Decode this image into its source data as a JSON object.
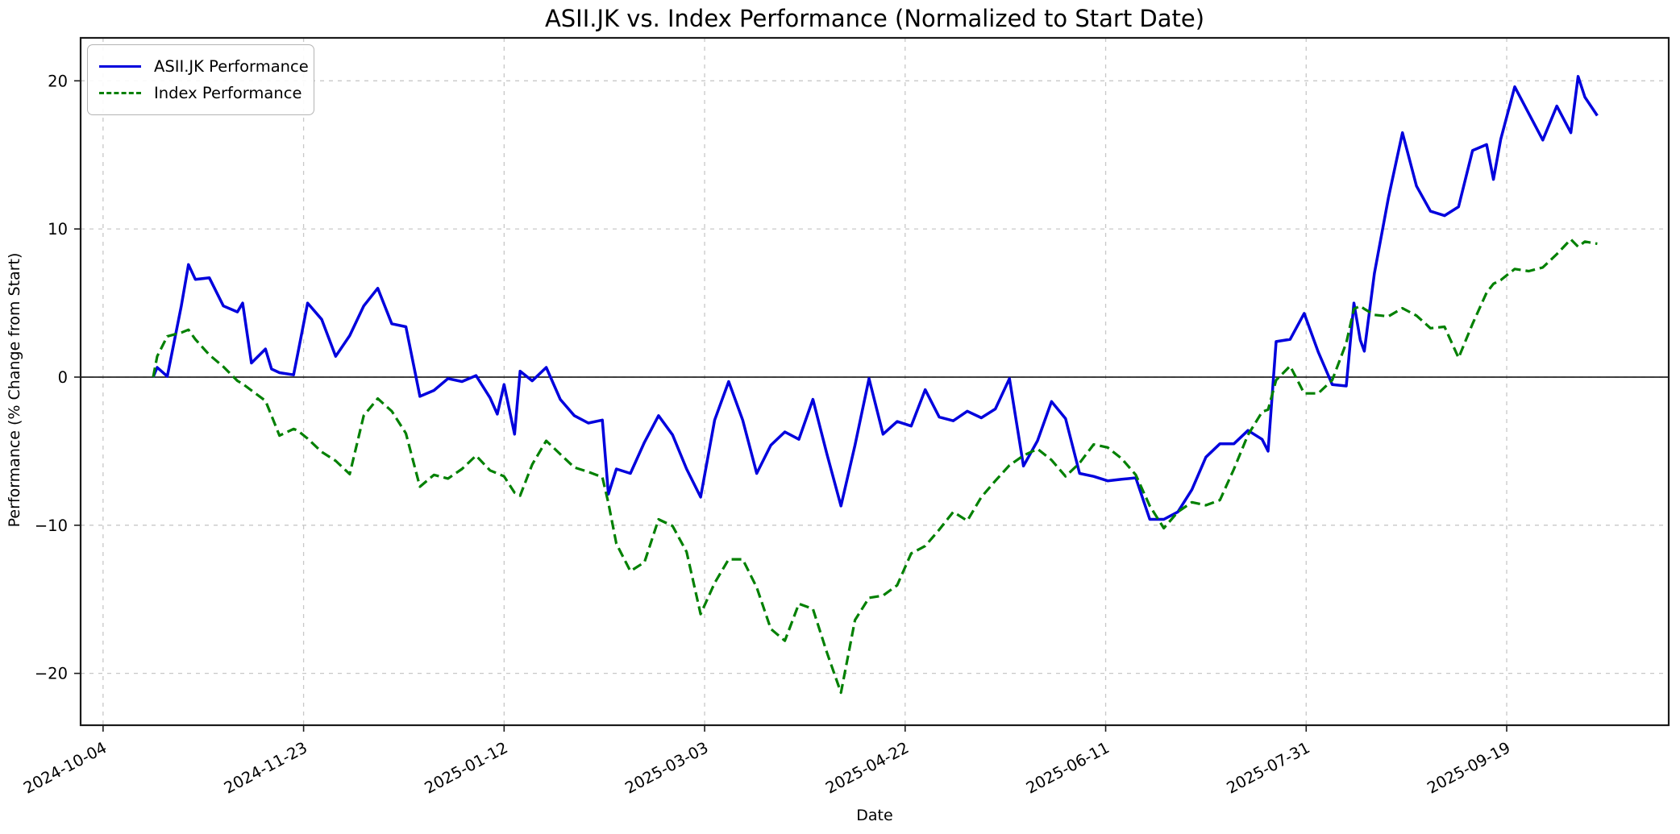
{
  "chart": {
    "title": "ASII.JK vs. Index Performance (Normalized to Start Date)",
    "xlabel": "Date",
    "ylabel": "Performance (% Change from Start)",
    "legend": {
      "position": "upper-left",
      "entries": [
        {
          "label": "ASII.JK Performance",
          "color": "#0000dd",
          "style": "solid"
        },
        {
          "label": "Index Performance",
          "color": "#008000",
          "style": "dashed"
        }
      ]
    }
  },
  "chart_data": {
    "type": "line",
    "title": "ASII.JK vs. Index Performance (Normalized to Start Date)",
    "xlabel": "Date",
    "ylabel": "Performance (% Change from Start)",
    "grid": true,
    "zero_line": true,
    "legend_position": "upper left",
    "x_unit": "days since 2024-10-04",
    "xlim": [
      -5.6,
      390.4
    ],
    "ylim": [
      -23.5,
      22.9
    ],
    "x_ticks": [
      {
        "day": 0,
        "label": "2024-10-04"
      },
      {
        "day": 50,
        "label": "2024-11-23"
      },
      {
        "day": 100,
        "label": "2025-01-12"
      },
      {
        "day": 150,
        "label": "2025-03-03"
      },
      {
        "day": 200,
        "label": "2025-04-22"
      },
      {
        "day": 250,
        "label": "2025-06-11"
      },
      {
        "day": 300,
        "label": "2025-07-31"
      },
      {
        "day": 350,
        "label": "2025-09-19"
      }
    ],
    "y_ticks": [
      {
        "value": -20,
        "label": "−20"
      },
      {
        "value": -10,
        "label": "−10"
      },
      {
        "value": 0,
        "label": "0"
      },
      {
        "value": 10,
        "label": "10"
      },
      {
        "value": 20,
        "label": "20"
      }
    ],
    "x": [
      12.5,
      13.5,
      16,
      19.5,
      21.3,
      23,
      26.5,
      30,
      33.5,
      34.8,
      37,
      40.5,
      42,
      44,
      47.5,
      48.5,
      51,
      54.5,
      58,
      61.5,
      65,
      68.5,
      72,
      75.5,
      79,
      82.5,
      86,
      89.5,
      93,
      96.5,
      98.3,
      100,
      102.6,
      104,
      107,
      110.5,
      114,
      117.5,
      121,
      124.5,
      126,
      128,
      131.5,
      135,
      138.5,
      142,
      145.5,
      149,
      152.5,
      156,
      159.5,
      163,
      166.5,
      170,
      173.5,
      177,
      180.5,
      184,
      187.5,
      191,
      194.5,
      198,
      201.5,
      205,
      208.5,
      212,
      215.5,
      219,
      222.5,
      226,
      229.5,
      233,
      236.5,
      240,
      243.5,
      247,
      250.5,
      254,
      257.5,
      261,
      264.5,
      268,
      271.5,
      275,
      278.5,
      282,
      285.5,
      289,
      290.5,
      292.5,
      296,
      299.5,
      303,
      306.5,
      310,
      311.9,
      313.5,
      314.5,
      317,
      320.5,
      324,
      327.5,
      331,
      334.5,
      338,
      341.5,
      345,
      346.7,
      348.5,
      352,
      355.5,
      359,
      362.5,
      366,
      367.8,
      369.5,
      372.6
    ],
    "series": [
      {
        "name": "ASII.JK Performance",
        "color": "#0000dd",
        "dash": null,
        "line_width": 3.5,
        "values": [
          0.0,
          0.65,
          0.05,
          4.8,
          7.6,
          6.6,
          6.7,
          4.8,
          4.4,
          5.0,
          0.95,
          1.9,
          0.55,
          0.3,
          0.15,
          1.5,
          5.0,
          3.9,
          1.4,
          2.8,
          4.8,
          6.0,
          3.6,
          3.4,
          -1.3,
          -0.9,
          -0.1,
          -0.3,
          0.1,
          -1.4,
          -2.5,
          -0.5,
          -3.85,
          0.4,
          -0.25,
          0.65,
          -1.5,
          -2.6,
          -3.1,
          -2.9,
          -7.9,
          -6.2,
          -6.5,
          -4.4,
          -2.6,
          -3.9,
          -6.2,
          -8.1,
          -2.9,
          -0.3,
          -2.9,
          -6.5,
          -4.6,
          -3.7,
          -4.2,
          -1.5,
          -5.2,
          -8.7,
          -4.6,
          -0.1,
          -3.85,
          -3.0,
          -3.3,
          -0.85,
          -2.7,
          -2.95,
          -2.3,
          -2.75,
          -2.15,
          -0.1,
          -6.0,
          -4.3,
          -1.65,
          -2.8,
          -6.5,
          -6.7,
          -7.0,
          -6.9,
          -6.8,
          -9.6,
          -9.6,
          -9.1,
          -7.6,
          -5.4,
          -4.5,
          -4.5,
          -3.6,
          -4.2,
          -5.0,
          2.4,
          2.55,
          4.3,
          1.7,
          -0.5,
          -0.6,
          5.0,
          2.5,
          1.75,
          7.0,
          12.1,
          16.5,
          12.9,
          11.2,
          10.9,
          11.5,
          15.3,
          15.7,
          13.35,
          16.05,
          19.6,
          17.8,
          16.0,
          18.3,
          16.5,
          20.3,
          18.9,
          17.65
        ]
      },
      {
        "name": "Index Performance",
        "color": "#008000",
        "dash": [
          12,
          6
        ],
        "line_width": 3.2,
        "values": [
          0.0,
          1.4,
          2.75,
          3.0,
          3.2,
          2.55,
          1.5,
          0.7,
          -0.25,
          -0.45,
          -0.9,
          -1.6,
          -2.6,
          -3.95,
          -3.5,
          -3.6,
          -4.15,
          -5.05,
          -5.65,
          -6.55,
          -2.6,
          -1.45,
          -2.3,
          -3.8,
          -7.4,
          -6.6,
          -6.85,
          -6.2,
          -5.3,
          -6.3,
          -6.5,
          -6.7,
          -7.8,
          -8.0,
          -5.9,
          -4.3,
          -5.2,
          -6.1,
          -6.4,
          -6.75,
          -8.5,
          -11.25,
          -13.1,
          -12.5,
          -9.6,
          -10.05,
          -11.8,
          -16.0,
          -13.9,
          -12.3,
          -12.3,
          -14.2,
          -17.0,
          -17.8,
          -15.3,
          -15.65,
          -18.6,
          -21.3,
          -16.4,
          -14.9,
          -14.75,
          -14.05,
          -11.9,
          -11.4,
          -10.3,
          -9.1,
          -9.7,
          -8.1,
          -7.0,
          -5.95,
          -5.3,
          -4.85,
          -5.6,
          -6.7,
          -5.8,
          -4.55,
          -4.75,
          -5.5,
          -6.6,
          -8.7,
          -10.2,
          -9.1,
          -8.45,
          -8.65,
          -8.3,
          -6.2,
          -3.9,
          -2.35,
          -2.2,
          -0.2,
          0.75,
          -1.1,
          -1.1,
          -0.2,
          2.3,
          4.6,
          4.8,
          4.6,
          4.2,
          4.1,
          4.65,
          4.15,
          3.3,
          3.4,
          1.3,
          3.6,
          5.7,
          6.3,
          6.55,
          7.3,
          7.15,
          7.4,
          8.3,
          9.3,
          8.8,
          9.15,
          9.0
        ]
      }
    ],
    "style": {
      "grid_color": "#c8c8c8",
      "grid_dash": [
        5,
        6
      ],
      "spine_color": "#1a1a1a",
      "zero_line_color": "#000000",
      "background": "#ffffff",
      "tick_label_size": 19.5,
      "x_tick_rotation_deg": 28
    }
  }
}
